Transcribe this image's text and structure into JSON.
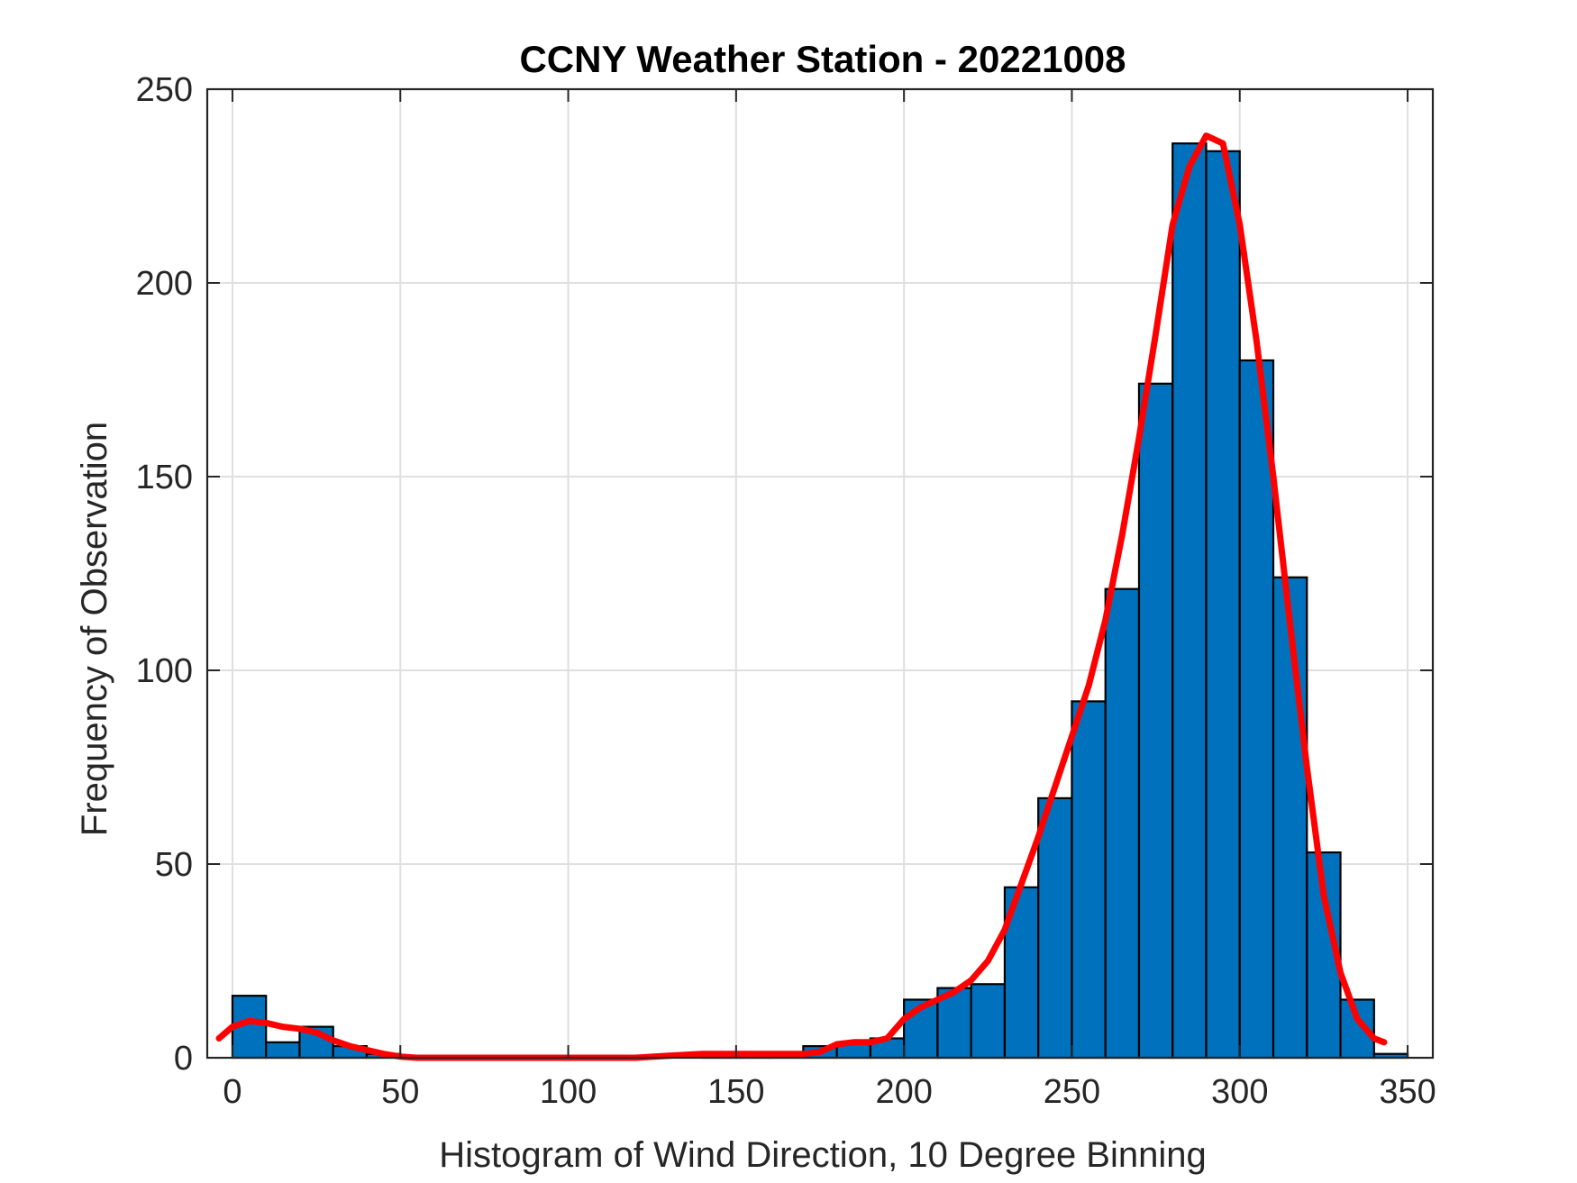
{
  "chart_data": {
    "type": "bar",
    "title": "CCNY Weather Station - 20221008",
    "xlabel": "Histogram of Wind Direction, 10 Degree Binning",
    "ylabel": "Frequency of Observation",
    "xlim": [
      -7.5,
      357.5
    ],
    "ylim": [
      0,
      250
    ],
    "xticks": [
      0,
      50,
      100,
      150,
      200,
      250,
      300,
      350
    ],
    "yticks": [
      0,
      50,
      100,
      150,
      200,
      250
    ],
    "grid": true,
    "bin_width": 10,
    "bins": [
      {
        "start": 0,
        "value": 16
      },
      {
        "start": 10,
        "value": 4
      },
      {
        "start": 20,
        "value": 8
      },
      {
        "start": 30,
        "value": 3
      },
      {
        "start": 40,
        "value": 1
      },
      {
        "start": 50,
        "value": 0
      },
      {
        "start": 60,
        "value": 0
      },
      {
        "start": 70,
        "value": 0
      },
      {
        "start": 80,
        "value": 0
      },
      {
        "start": 90,
        "value": 0
      },
      {
        "start": 100,
        "value": 0
      },
      {
        "start": 110,
        "value": 0
      },
      {
        "start": 120,
        "value": 0
      },
      {
        "start": 130,
        "value": 0
      },
      {
        "start": 140,
        "value": 1
      },
      {
        "start": 150,
        "value": 1
      },
      {
        "start": 160,
        "value": 1
      },
      {
        "start": 170,
        "value": 3
      },
      {
        "start": 180,
        "value": 4
      },
      {
        "start": 190,
        "value": 5
      },
      {
        "start": 200,
        "value": 15
      },
      {
        "start": 210,
        "value": 18
      },
      {
        "start": 220,
        "value": 19
      },
      {
        "start": 230,
        "value": 44
      },
      {
        "start": 240,
        "value": 67
      },
      {
        "start": 250,
        "value": 92
      },
      {
        "start": 260,
        "value": 121
      },
      {
        "start": 270,
        "value": 174
      },
      {
        "start": 280,
        "value": 236
      },
      {
        "start": 290,
        "value": 234
      },
      {
        "start": 300,
        "value": 180
      },
      {
        "start": 310,
        "value": 124
      },
      {
        "start": 320,
        "value": 53
      },
      {
        "start": 330,
        "value": 15
      },
      {
        "start": 340,
        "value": 1
      }
    ],
    "fit_curve": {
      "x": [
        -4,
        0,
        5,
        10,
        15,
        20,
        25,
        30,
        35,
        40,
        45,
        50,
        55,
        60,
        70,
        80,
        90,
        100,
        110,
        120,
        130,
        140,
        150,
        160,
        170,
        175,
        180,
        185,
        190,
        195,
        200,
        205,
        210,
        215,
        220,
        225,
        230,
        235,
        240,
        245,
        250,
        255,
        260,
        265,
        270,
        275,
        280,
        285,
        290,
        295,
        300,
        305,
        310,
        315,
        320,
        325,
        330,
        335,
        340,
        343
      ],
      "y": [
        5,
        8,
        9.5,
        9,
        8,
        7.5,
        6.5,
        4.5,
        3,
        2,
        1,
        0.3,
        0,
        0,
        0,
        0,
        0,
        0,
        0,
        0,
        0.5,
        1,
        1,
        1,
        1,
        1.5,
        3.5,
        4,
        4,
        5,
        10,
        13,
        15,
        17,
        20,
        25,
        33,
        45,
        57,
        70,
        83,
        96,
        113,
        135,
        160,
        187,
        215,
        230,
        238,
        236,
        215,
        185,
        150,
        112,
        75,
        42,
        22,
        10,
        5,
        4
      ],
      "color": "#FF0000"
    },
    "bar_color": "#0072BD",
    "bar_edge_color": "#000000"
  }
}
